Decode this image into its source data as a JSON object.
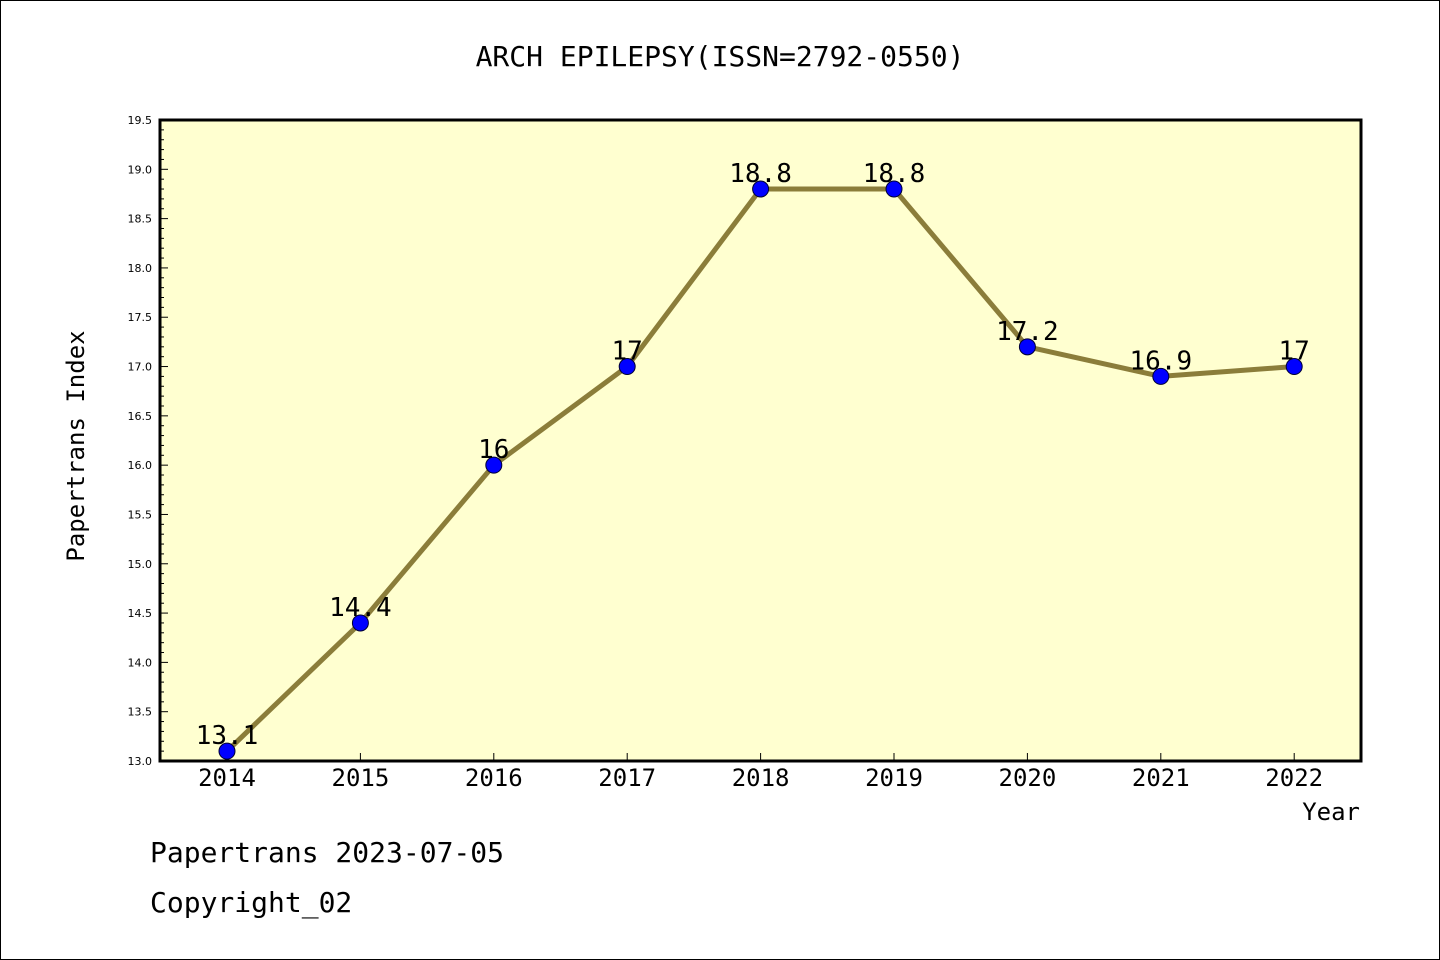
{
  "chart_data": {
    "type": "line",
    "title": "ARCH EPILEPSY(ISSN=2792-0550)",
    "xlabel": "Year",
    "ylabel": "Papertrans Index",
    "categories": [
      "2014",
      "2015",
      "2016",
      "2017",
      "2018",
      "2019",
      "2020",
      "2021",
      "2022"
    ],
    "series": [
      {
        "values": [
          13.1,
          14.4,
          16,
          17,
          18.8,
          18.8,
          17.2,
          16.9,
          17
        ],
        "labels": [
          "13.1",
          "14.4",
          "16",
          "17",
          "18.8",
          "18.8",
          "17.2",
          "16.9",
          "17"
        ]
      }
    ],
    "ylim": [
      13.0,
      19.5
    ],
    "yticks": [
      "13.0",
      "13.5",
      "14.0",
      "14.5",
      "15.0",
      "15.5",
      "16.0",
      "16.5",
      "17.0",
      "17.5",
      "18.0",
      "18.5",
      "19.0",
      "19.5"
    ],
    "grid": false,
    "colors": {
      "plot_bg": "#ffffd0",
      "line": "#8b7d3a",
      "marker": "#0000ff"
    }
  },
  "footer": {
    "line1": "Papertrans 2023-07-05",
    "line2": "Copyright_02"
  }
}
